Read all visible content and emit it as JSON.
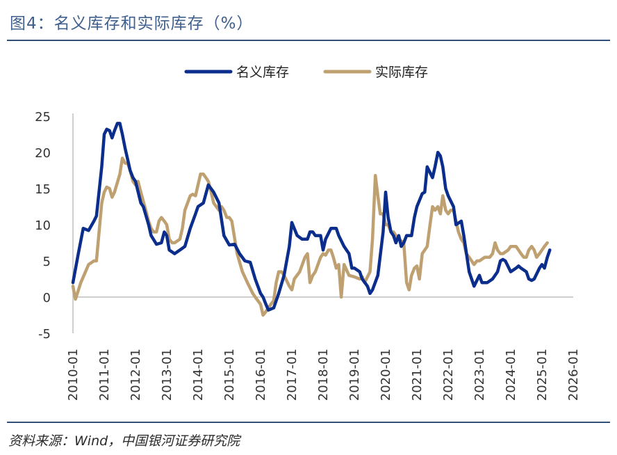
{
  "header": {
    "title": "图4：名义库存和实际库存（%）"
  },
  "footer": {
    "source": "资料来源：Wind，中国银河证券研究院"
  },
  "colors": {
    "nominal": "#0b2d8c",
    "real": "#bfa071",
    "axis": "#bfbfbf",
    "rule": "#32507a"
  },
  "chart_data": {
    "type": "line",
    "title": "图4：名义库存和实际库存（%）",
    "xlabel": "",
    "ylabel": "",
    "ylim": [
      -5,
      25
    ],
    "yticks": [
      25,
      20,
      15,
      10,
      5,
      0,
      -5
    ],
    "xlim": [
      2010.0,
      2026.0
    ],
    "x_ticks": [
      "2010-01",
      "2011-01",
      "2012-01",
      "2013-01",
      "2014-01",
      "2015-01",
      "2016-01",
      "2017-01",
      "2018-01",
      "2019-01",
      "2020-01",
      "2021-01",
      "2022-01",
      "2023-01",
      "2024-01",
      "2025-01",
      "2026-01"
    ],
    "legend": {
      "position": "top-center"
    },
    "series": [
      {
        "name": "名义库存",
        "color": "#0b2d8c",
        "points": [
          [
            2010.0,
            2.0
          ],
          [
            2010.17,
            6.0
          ],
          [
            2010.33,
            9.5
          ],
          [
            2010.5,
            9.2
          ],
          [
            2010.67,
            10.5
          ],
          [
            2010.75,
            11.2
          ],
          [
            2010.92,
            18
          ],
          [
            2011.0,
            22.5
          ],
          [
            2011.08,
            23.2
          ],
          [
            2011.17,
            23.0
          ],
          [
            2011.25,
            22.0
          ],
          [
            2011.33,
            23.0
          ],
          [
            2011.42,
            24.0
          ],
          [
            2011.5,
            24.0
          ],
          [
            2011.58,
            22.5
          ],
          [
            2011.67,
            20.5
          ],
          [
            2011.75,
            19.0
          ],
          [
            2011.83,
            17.5
          ],
          [
            2011.92,
            16.5
          ],
          [
            2012.0,
            16.0
          ],
          [
            2012.17,
            13
          ],
          [
            2012.25,
            12.5
          ],
          [
            2012.42,
            10
          ],
          [
            2012.5,
            8.5
          ],
          [
            2012.67,
            7.3
          ],
          [
            2012.83,
            7.5
          ],
          [
            2012.92,
            9.0
          ],
          [
            2013.0,
            8.5
          ],
          [
            2013.08,
            6.5
          ],
          [
            2013.25,
            6.0
          ],
          [
            2013.42,
            6.5
          ],
          [
            2013.58,
            7.0
          ],
          [
            2013.75,
            9.5
          ],
          [
            2013.92,
            11.5
          ],
          [
            2014.0,
            12.5
          ],
          [
            2014.17,
            13
          ],
          [
            2014.33,
            15.5
          ],
          [
            2014.5,
            14.5
          ],
          [
            2014.67,
            13.0
          ],
          [
            2014.83,
            8.5
          ],
          [
            2015.0,
            7.2
          ],
          [
            2015.17,
            7.3
          ],
          [
            2015.33,
            6.0
          ],
          [
            2015.5,
            5.0
          ],
          [
            2015.67,
            4.8
          ],
          [
            2015.83,
            2.5
          ],
          [
            2016.0,
            0.5
          ],
          [
            2016.08,
            0
          ],
          [
            2016.17,
            -1.0
          ],
          [
            2016.25,
            -1.8
          ],
          [
            2016.42,
            -1.5
          ],
          [
            2016.5,
            -0.5
          ],
          [
            2016.58,
            0.5
          ],
          [
            2016.75,
            3
          ],
          [
            2016.92,
            7
          ],
          [
            2017.0,
            10.3
          ],
          [
            2017.17,
            8.5
          ],
          [
            2017.33,
            8.0
          ],
          [
            2017.5,
            8.0
          ],
          [
            2017.58,
            9.0
          ],
          [
            2017.67,
            9.0
          ],
          [
            2017.75,
            8.5
          ],
          [
            2017.92,
            8.5
          ],
          [
            2018.0,
            6.5
          ],
          [
            2018.08,
            8.0
          ],
          [
            2018.25,
            9.5
          ],
          [
            2018.42,
            9.5
          ],
          [
            2018.5,
            8.5
          ],
          [
            2018.67,
            7.0
          ],
          [
            2018.83,
            6.0
          ],
          [
            2018.92,
            4.0
          ],
          [
            2019.0,
            4.0
          ],
          [
            2019.17,
            3.5
          ],
          [
            2019.25,
            2.5
          ],
          [
            2019.42,
            1.5
          ],
          [
            2019.5,
            0.5
          ],
          [
            2019.58,
            1.0
          ],
          [
            2019.75,
            3.0
          ],
          [
            2019.92,
            9.0
          ],
          [
            2020.0,
            14.5
          ],
          [
            2020.08,
            11
          ],
          [
            2020.17,
            9.0
          ],
          [
            2020.25,
            8.5
          ],
          [
            2020.33,
            7.5
          ],
          [
            2020.42,
            8.5
          ],
          [
            2020.5,
            7.0
          ],
          [
            2020.58,
            7.5
          ],
          [
            2020.67,
            8.5
          ],
          [
            2020.83,
            8.5
          ],
          [
            2020.92,
            11
          ],
          [
            2021.0,
            12.5
          ],
          [
            2021.17,
            14.3
          ],
          [
            2021.25,
            14.5
          ],
          [
            2021.33,
            18.0
          ],
          [
            2021.5,
            16.5
          ],
          [
            2021.58,
            18
          ],
          [
            2021.67,
            20.0
          ],
          [
            2021.75,
            19.5
          ],
          [
            2021.83,
            18
          ],
          [
            2021.92,
            15
          ],
          [
            2022.0,
            14.0
          ],
          [
            2022.17,
            12.5
          ],
          [
            2022.25,
            10.0
          ],
          [
            2022.42,
            10.5
          ],
          [
            2022.5,
            8.5
          ],
          [
            2022.67,
            3.5
          ],
          [
            2022.83,
            1.5
          ],
          [
            2023.0,
            3.0
          ],
          [
            2023.08,
            2.0
          ],
          [
            2023.25,
            2.0
          ],
          [
            2023.42,
            2.5
          ],
          [
            2023.58,
            3.5
          ],
          [
            2023.67,
            5.0
          ],
          [
            2023.75,
            5.2
          ],
          [
            2023.83,
            5.0
          ],
          [
            2024.0,
            3.5
          ],
          [
            2024.17,
            4.0
          ],
          [
            2024.25,
            4.3
          ],
          [
            2024.33,
            4.0
          ],
          [
            2024.5,
            3.5
          ],
          [
            2024.58,
            2.5
          ],
          [
            2024.67,
            2.3
          ],
          [
            2024.75,
            2.5
          ],
          [
            2024.92,
            4.0
          ],
          [
            2025.0,
            4.5
          ],
          [
            2025.08,
            4.0
          ],
          [
            2025.17,
            5.5
          ],
          [
            2025.25,
            6.5
          ]
        ]
      },
      {
        "name": "实际库存",
        "color": "#bfa071",
        "points": [
          [
            2010.0,
            1.5
          ],
          [
            2010.08,
            -0.3
          ],
          [
            2010.25,
            2.0
          ],
          [
            2010.5,
            4.5
          ],
          [
            2010.67,
            5.0
          ],
          [
            2010.75,
            5.0
          ],
          [
            2010.92,
            13
          ],
          [
            2011.0,
            14.5
          ],
          [
            2011.08,
            15.2
          ],
          [
            2011.17,
            15.0
          ],
          [
            2011.25,
            13.8
          ],
          [
            2011.33,
            14.5
          ],
          [
            2011.5,
            17.0
          ],
          [
            2011.58,
            19.2
          ],
          [
            2011.67,
            18.5
          ],
          [
            2011.75,
            18.5
          ],
          [
            2011.83,
            17.5
          ],
          [
            2011.92,
            16.0
          ],
          [
            2012.0,
            15.5
          ],
          [
            2012.08,
            16.0
          ],
          [
            2012.17,
            14.5
          ],
          [
            2012.33,
            12.0
          ],
          [
            2012.42,
            10.5
          ],
          [
            2012.5,
            9.5
          ],
          [
            2012.58,
            9.0
          ],
          [
            2012.67,
            9.0
          ],
          [
            2012.75,
            10.5
          ],
          [
            2012.83,
            11.0
          ],
          [
            2012.92,
            10.5
          ],
          [
            2013.0,
            10.0
          ],
          [
            2013.08,
            8.0
          ],
          [
            2013.17,
            7.5
          ],
          [
            2013.25,
            7.5
          ],
          [
            2013.42,
            8.0
          ],
          [
            2013.5,
            9.5
          ],
          [
            2013.58,
            12.0
          ],
          [
            2013.75,
            14.0
          ],
          [
            2013.83,
            14.2
          ],
          [
            2013.92,
            14.0
          ],
          [
            2014.0,
            15.5
          ],
          [
            2014.08,
            17.0
          ],
          [
            2014.17,
            17.0
          ],
          [
            2014.25,
            16.5
          ],
          [
            2014.33,
            16.0
          ],
          [
            2014.42,
            14.5
          ],
          [
            2014.5,
            13.0
          ],
          [
            2014.67,
            12.0
          ],
          [
            2014.75,
            12.5
          ],
          [
            2014.83,
            12.0
          ],
          [
            2014.92,
            11.0
          ],
          [
            2015.0,
            11.0
          ],
          [
            2015.08,
            10.5
          ],
          [
            2015.25,
            6.0
          ],
          [
            2015.42,
            3.5
          ],
          [
            2015.58,
            2.0
          ],
          [
            2015.75,
            0.5
          ],
          [
            2015.83,
            0
          ],
          [
            2016.0,
            -1.0
          ],
          [
            2016.08,
            -2.5
          ],
          [
            2016.17,
            -2.0
          ],
          [
            2016.25,
            -1.5
          ],
          [
            2016.33,
            -1.0
          ],
          [
            2016.42,
            -0.5
          ],
          [
            2016.5,
            2.0
          ],
          [
            2016.58,
            3.5
          ],
          [
            2016.67,
            3.5
          ],
          [
            2016.75,
            3.0
          ],
          [
            2016.92,
            1.5
          ],
          [
            2017.0,
            1.0
          ],
          [
            2017.08,
            2.5
          ],
          [
            2017.25,
            3.5
          ],
          [
            2017.42,
            5.5
          ],
          [
            2017.5,
            6.0
          ],
          [
            2017.58,
            2.0
          ],
          [
            2017.67,
            3.0
          ],
          [
            2017.75,
            3.5
          ],
          [
            2017.92,
            5.5
          ],
          [
            2018.0,
            6.0
          ],
          [
            2018.08,
            5.8
          ],
          [
            2018.17,
            6.5
          ],
          [
            2018.25,
            6.5
          ],
          [
            2018.33,
            5.5
          ],
          [
            2018.42,
            4.0
          ],
          [
            2018.5,
            4.5
          ],
          [
            2018.58,
            0
          ],
          [
            2018.67,
            4.5
          ],
          [
            2018.83,
            3.0
          ],
          [
            2019.0,
            2.8
          ],
          [
            2019.17,
            2.5
          ],
          [
            2019.25,
            2.8
          ],
          [
            2019.33,
            2.0
          ],
          [
            2019.5,
            3.5
          ],
          [
            2019.58,
            8.0
          ],
          [
            2019.67,
            16.8
          ],
          [
            2019.75,
            14.0
          ],
          [
            2019.83,
            11.5
          ],
          [
            2019.92,
            11.5
          ],
          [
            2020.0,
            10.0
          ],
          [
            2020.08,
            10.0
          ],
          [
            2020.17,
            9.0
          ],
          [
            2020.25,
            9.0
          ],
          [
            2020.33,
            8.5
          ],
          [
            2020.42,
            8.0
          ],
          [
            2020.58,
            7.5
          ],
          [
            2020.67,
            2.0
          ],
          [
            2020.75,
            1.0
          ],
          [
            2020.83,
            3.0
          ],
          [
            2020.92,
            4.0
          ],
          [
            2021.0,
            4.3
          ],
          [
            2021.08,
            2.5
          ],
          [
            2021.17,
            6.0
          ],
          [
            2021.25,
            6.5
          ],
          [
            2021.33,
            7.0
          ],
          [
            2021.42,
            10.0
          ],
          [
            2021.5,
            12.5
          ],
          [
            2021.58,
            12.0
          ],
          [
            2021.67,
            12.5
          ],
          [
            2021.75,
            11.5
          ],
          [
            2021.83,
            14.0
          ],
          [
            2021.92,
            12.0
          ],
          [
            2022.0,
            11.5
          ],
          [
            2022.08,
            12.0
          ],
          [
            2022.17,
            12.0
          ],
          [
            2022.25,
            10.5
          ],
          [
            2022.33,
            9.0
          ],
          [
            2022.42,
            8.0
          ],
          [
            2022.5,
            7.5
          ],
          [
            2022.58,
            6.0
          ],
          [
            2022.67,
            5.5
          ],
          [
            2022.75,
            5.0
          ],
          [
            2022.83,
            4.5
          ],
          [
            2022.92,
            5.0
          ],
          [
            2023.0,
            5.0
          ],
          [
            2023.17,
            5.5
          ],
          [
            2023.33,
            5.5
          ],
          [
            2023.42,
            6.0
          ],
          [
            2023.5,
            7.5
          ],
          [
            2023.58,
            6.5
          ],
          [
            2023.67,
            6.0
          ],
          [
            2023.75,
            6.0
          ],
          [
            2023.92,
            6.5
          ],
          [
            2024.0,
            7.0
          ],
          [
            2024.08,
            7.0
          ],
          [
            2024.17,
            7.0
          ],
          [
            2024.25,
            6.5
          ],
          [
            2024.33,
            6.0
          ],
          [
            2024.42,
            5.5
          ],
          [
            2024.5,
            5.5
          ],
          [
            2024.58,
            6.5
          ],
          [
            2024.67,
            7.0
          ],
          [
            2024.75,
            6.5
          ],
          [
            2024.83,
            5.5
          ],
          [
            2024.92,
            6.0
          ],
          [
            2025.0,
            6.5
          ],
          [
            2025.08,
            7.0
          ],
          [
            2025.17,
            7.5
          ]
        ]
      }
    ]
  }
}
